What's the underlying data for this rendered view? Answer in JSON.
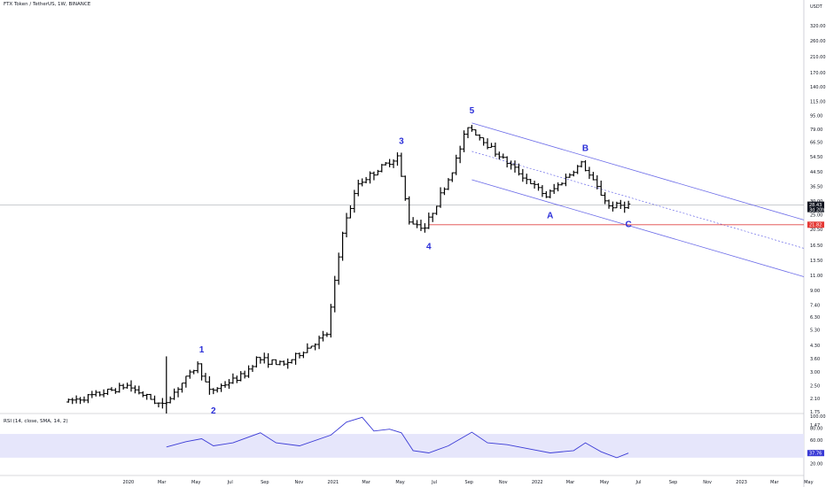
{
  "header": {
    "title": "FTX Token / TetherUS, 1W, BINANCE",
    "rsi_title": "RSI (14, close, SMA, 14, 2)"
  },
  "colors": {
    "bars": "#000000",
    "channel": "#6a6ae8",
    "rsi_line": "#3b3bd6",
    "rsi_band": "#e6e6fb",
    "support": "#e04545",
    "label": "#2a2ed8",
    "last_price_tag": "#131722",
    "support_tag": "#e53935",
    "rsi_tag": "#3b3bd6"
  },
  "chart_data": [
    {
      "type": "ohlc",
      "symbol": "FTX Token / TetherUS",
      "timeframe": "1W",
      "exchange": "BINANCE",
      "y_scale": "log",
      "y_axis_unit": "USDT",
      "y_ticks": [
        "320.00",
        "260.00",
        "210.00",
        "170.00",
        "140.00",
        "115.00",
        "95.00",
        "79.00",
        "66.50",
        "54.50",
        "44.50",
        "36.50",
        "30.00",
        "25.00",
        "20.50",
        "16.50",
        "13.50",
        "11.00",
        "9.00",
        "7.40",
        "6.30",
        "5.30",
        "4.30",
        "3.60",
        "3.00",
        "2.50",
        "2.10",
        "1.75",
        "1.47"
      ],
      "x_ticks": [
        "2020",
        "Mar",
        "May",
        "Jul",
        "Sep",
        "Nov",
        "2021",
        "Mar",
        "May",
        "Jul",
        "Sep",
        "Nov",
        "2022",
        "Mar",
        "May",
        "Jul",
        "Sep",
        "Nov",
        "2023",
        "Mar",
        "May"
      ],
      "price_path": [
        {
          "date": "2019-09-16",
          "price": 2.0
        },
        {
          "date": "2019-11-11",
          "price": 2.2
        },
        {
          "date": "2020-01-06",
          "price": 2.5
        },
        {
          "date": "2020-03-09",
          "price": 1.9
        },
        {
          "date": "2020-05-11",
          "price": 3.3
        },
        {
          "date": "2020-06-01",
          "price": 2.3
        },
        {
          "date": "2020-08-03",
          "price": 2.9
        },
        {
          "date": "2020-08-24",
          "price": 3.6
        },
        {
          "date": "2020-10-12",
          "price": 3.3
        },
        {
          "date": "2020-12-28",
          "price": 5.0
        },
        {
          "date": "2021-01-25",
          "price": 20.0
        },
        {
          "date": "2021-02-22",
          "price": 38.0
        },
        {
          "date": "2021-05-03",
          "price": 55.0
        },
        {
          "date": "2021-05-24",
          "price": 23.0
        },
        {
          "date": "2021-06-21",
          "price": 21.0
        },
        {
          "date": "2021-08-09",
          "price": 45.0
        },
        {
          "date": "2021-09-06",
          "price": 83.0
        },
        {
          "date": "2021-10-25",
          "price": 58.0
        },
        {
          "date": "2022-01-24",
          "price": 32.0
        },
        {
          "date": "2022-03-28",
          "price": 50.0
        },
        {
          "date": "2022-05-16",
          "price": 28.0
        },
        {
          "date": "2022-06-13",
          "price": 28.43
        }
      ],
      "wave_labels": [
        {
          "label": "1",
          "date": "2020-05-11"
        },
        {
          "label": "2",
          "date": "2020-06-01"
        },
        {
          "label": "3",
          "date": "2021-05-03"
        },
        {
          "label": "4",
          "date": "2021-06-21"
        },
        {
          "label": "5",
          "date": "2021-09-06"
        },
        {
          "label": "A",
          "date": "2022-01-24"
        },
        {
          "label": "B",
          "date": "2022-03-28"
        },
        {
          "label": "C",
          "date": "2022-06-13"
        }
      ],
      "horizontal_line": {
        "price": 21.82,
        "color": "#e04545"
      },
      "last_price": {
        "value": "28.43",
        "countdown": "3d 20h"
      },
      "support_value": "21.82"
    },
    {
      "type": "line",
      "indicator": "RSI (14, close, SMA, 14, 2)",
      "y_ticks": [
        "100.00",
        "80.00",
        "60.00",
        "40.00",
        "20.00"
      ],
      "band": [
        30,
        70
      ],
      "series": [
        {
          "values": [
            {
              "date": "2020-03-09",
              "rsi": 48
            },
            {
              "date": "2020-04-13",
              "rsi": 57
            },
            {
              "date": "2020-05-11",
              "rsi": 62
            },
            {
              "date": "2020-06-01",
              "rsi": 50
            },
            {
              "date": "2020-07-06",
              "rsi": 55
            },
            {
              "date": "2020-08-24",
              "rsi": 72
            },
            {
              "date": "2020-09-21",
              "rsi": 55
            },
            {
              "date": "2020-11-02",
              "rsi": 50
            },
            {
              "date": "2020-12-28",
              "rsi": 68
            },
            {
              "date": "2021-01-25",
              "rsi": 90
            },
            {
              "date": "2021-02-22",
              "rsi": 98
            },
            {
              "date": "2021-03-15",
              "rsi": 75
            },
            {
              "date": "2021-04-12",
              "rsi": 78
            },
            {
              "date": "2021-05-03",
              "rsi": 72
            },
            {
              "date": "2021-05-24",
              "rsi": 42
            },
            {
              "date": "2021-06-21",
              "rsi": 38
            },
            {
              "date": "2021-07-26",
              "rsi": 50
            },
            {
              "date": "2021-09-06",
              "rsi": 73
            },
            {
              "date": "2021-10-04",
              "rsi": 55
            },
            {
              "date": "2021-11-08",
              "rsi": 52
            },
            {
              "date": "2022-01-24",
              "rsi": 38
            },
            {
              "date": "2022-03-07",
              "rsi": 42
            },
            {
              "date": "2022-03-28",
              "rsi": 55
            },
            {
              "date": "2022-04-25",
              "rsi": 40
            },
            {
              "date": "2022-05-23",
              "rsi": 30
            },
            {
              "date": "2022-06-13",
              "rsi": 37.76
            }
          ]
        }
      ],
      "last_value": "37.76"
    }
  ]
}
